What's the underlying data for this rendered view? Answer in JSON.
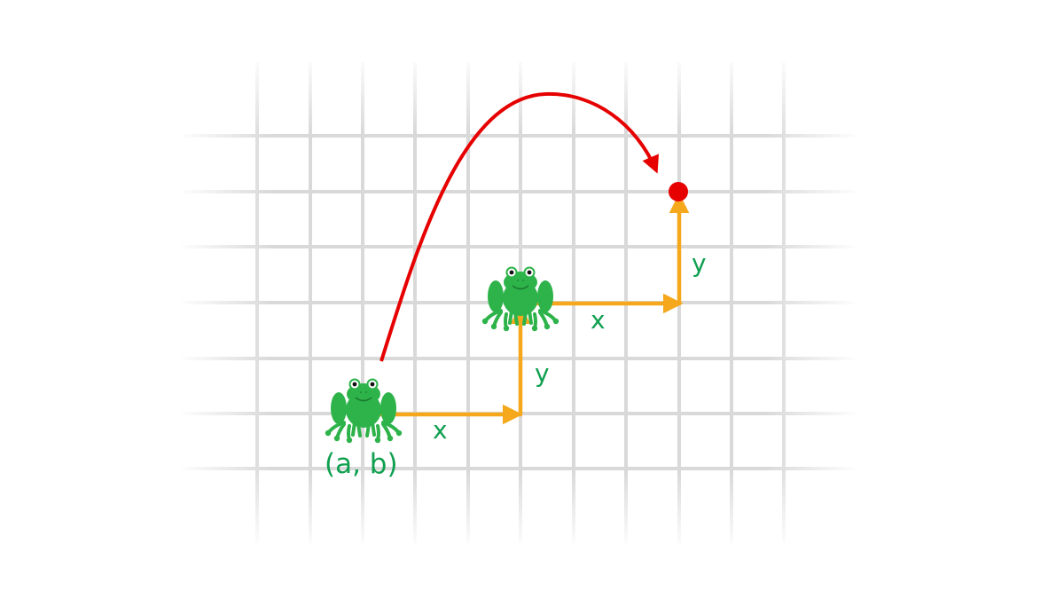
{
  "diagram": {
    "origin_label": "(a, b)",
    "step_x_label": "x",
    "step_y_label": "y",
    "colors": {
      "grid": "#d9d9d9",
      "step_path": "#f5a81c",
      "jump_arc": "#e60000",
      "target": "#e60000",
      "label": "#10a050",
      "frog_body": "#2db34a",
      "frog_dark": "#1c7a30"
    },
    "icons": {
      "frog_start": "frog-icon",
      "frog_mid": "frog-icon",
      "target": "target-dot-icon"
    }
  }
}
